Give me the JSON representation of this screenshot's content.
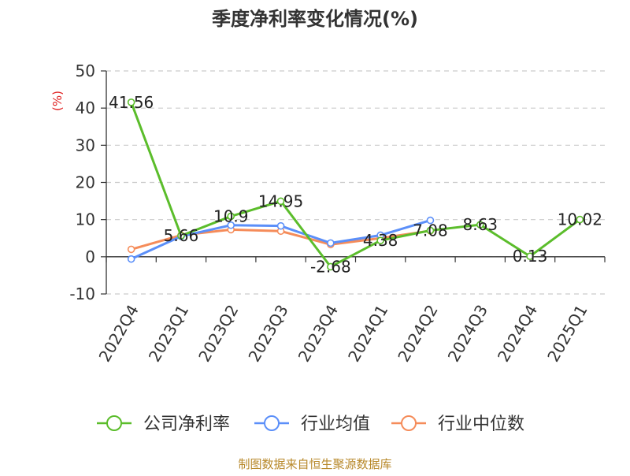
{
  "chart_data": {
    "type": "line",
    "title": "季度净利率变化情况(%)",
    "ylabel": "(%)",
    "xlabel": "",
    "source": "制图数据来自恒生聚源数据库",
    "categories": [
      "2022Q4",
      "2023Q1",
      "2023Q2",
      "2023Q3",
      "2023Q4",
      "2024Q1",
      "2024Q2",
      "2024Q3",
      "2024Q4",
      "2025Q1"
    ],
    "ylim": [
      -10,
      50
    ],
    "yticks": [
      -10,
      0,
      10,
      20,
      30,
      40,
      50
    ],
    "grid": true,
    "legend_position": "bottom",
    "series": [
      {
        "name": "公司净利率",
        "color": "#5bbd2b",
        "values": [
          41.56,
          5.66,
          10.9,
          14.95,
          -2.68,
          4.38,
          7.08,
          8.63,
          0.13,
          10.02
        ],
        "labels": [
          "41.56",
          "5.66",
          "10.9",
          "14.95",
          "-2.68",
          "4.38",
          "7.08",
          "8.63",
          "0.13",
          "10.02"
        ]
      },
      {
        "name": "行业均值",
        "color": "#5b8ff9",
        "values": [
          -0.6,
          5.5,
          8.5,
          8.3,
          3.7,
          5.8,
          9.8,
          null,
          null,
          null
        ]
      },
      {
        "name": "行业中位数",
        "color": "#f58c5a",
        "values": [
          2.0,
          5.8,
          7.3,
          6.9,
          3.3,
          5.0,
          7.0,
          null,
          null,
          null
        ]
      }
    ]
  }
}
